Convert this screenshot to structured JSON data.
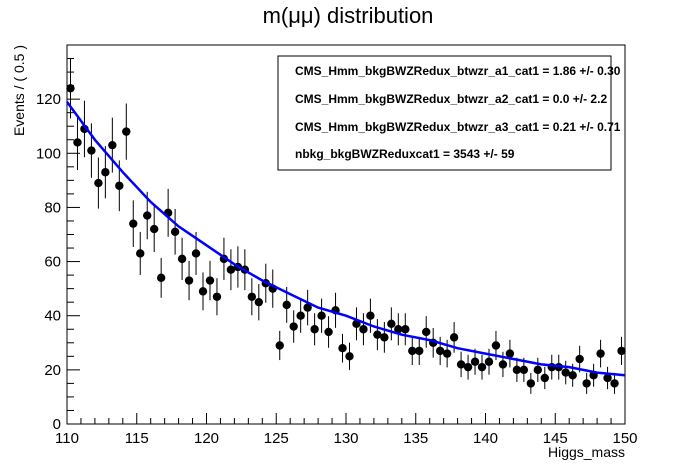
{
  "chart_data": {
    "type": "scatter",
    "title": "m(μμ) distribution",
    "xlabel": "Higgs_mass",
    "ylabel": "Events / ( 0.5 )",
    "xlim": [
      110,
      150
    ],
    "ylim": [
      0,
      140
    ],
    "x_ticks": [
      110,
      115,
      120,
      125,
      130,
      135,
      140,
      145,
      150
    ],
    "y_ticks": [
      0,
      20,
      40,
      60,
      80,
      100,
      120
    ],
    "grid": false,
    "legend_position": "top-right",
    "legend": [
      "CMS_Hmm_bkgBWZRedux_btwzr_a1_cat1 =  1.86 +/- 0.30",
      "CMS_Hmm_bkgBWZRedux_btwzr_a2_cat1 =  0.0 +/- 2.2",
      "CMS_Hmm_bkgBWZRedux_btwzr_a3_cat1 =  0.21 +/- 0.71",
      "nbkg_bkgBWZReduxcat1 =  3543 +/- 59"
    ],
    "series": [
      {
        "type": "points",
        "color": "#000000",
        "x": [
          110.25,
          110.75,
          111.25,
          111.75,
          112.25,
          112.75,
          113.25,
          113.75,
          114.25,
          114.75,
          115.25,
          115.75,
          116.25,
          116.75,
          117.25,
          117.75,
          118.25,
          118.75,
          119.25,
          119.75,
          120.25,
          120.75,
          121.25,
          121.75,
          122.25,
          122.75,
          123.25,
          123.75,
          124.25,
          124.75,
          125.25,
          125.75,
          126.25,
          126.75,
          127.25,
          127.75,
          128.25,
          128.75,
          129.25,
          129.75,
          130.25,
          130.75,
          131.25,
          131.75,
          132.25,
          132.75,
          133.25,
          133.75,
          134.25,
          134.75,
          135.25,
          135.75,
          136.25,
          136.75,
          137.25,
          137.75,
          138.25,
          138.75,
          139.25,
          139.75,
          140.25,
          140.75,
          141.25,
          141.75,
          142.25,
          142.75,
          143.25,
          143.75,
          144.25,
          144.75,
          145.25,
          145.75,
          146.25,
          146.75,
          147.25,
          147.75,
          148.25,
          148.75,
          149.25,
          149.75
        ],
        "y": [
          124,
          104,
          109,
          101,
          89,
          93,
          103,
          88,
          108,
          74,
          63,
          77,
          72,
          54,
          78,
          71,
          61,
          53,
          63,
          49,
          53,
          47,
          61,
          57,
          58,
          57,
          47,
          45,
          52,
          50,
          29,
          44,
          36,
          40,
          43,
          35,
          40,
          34,
          42,
          28,
          25,
          37,
          35,
          40,
          33,
          32,
          37,
          35,
          35,
          27,
          27,
          34,
          30,
          27,
          26,
          32,
          22,
          21,
          23,
          21,
          23,
          29,
          22,
          26,
          20,
          20,
          15,
          20,
          17,
          21,
          21,
          19,
          18,
          24,
          15,
          18,
          26,
          17,
          15,
          27
        ]
      },
      {
        "type": "fit-line",
        "color": "#0000ff",
        "x": [
          110,
          112,
          114,
          116,
          118,
          120,
          122,
          124,
          126,
          128,
          130,
          132,
          134,
          136,
          138,
          140,
          142,
          144,
          146,
          148,
          150
        ],
        "y": [
          119,
          105,
          93,
          82,
          73,
          66,
          59,
          53,
          48,
          43,
          40,
          36,
          33,
          31,
          28,
          26,
          24,
          22,
          21,
          19,
          18
        ]
      }
    ]
  }
}
